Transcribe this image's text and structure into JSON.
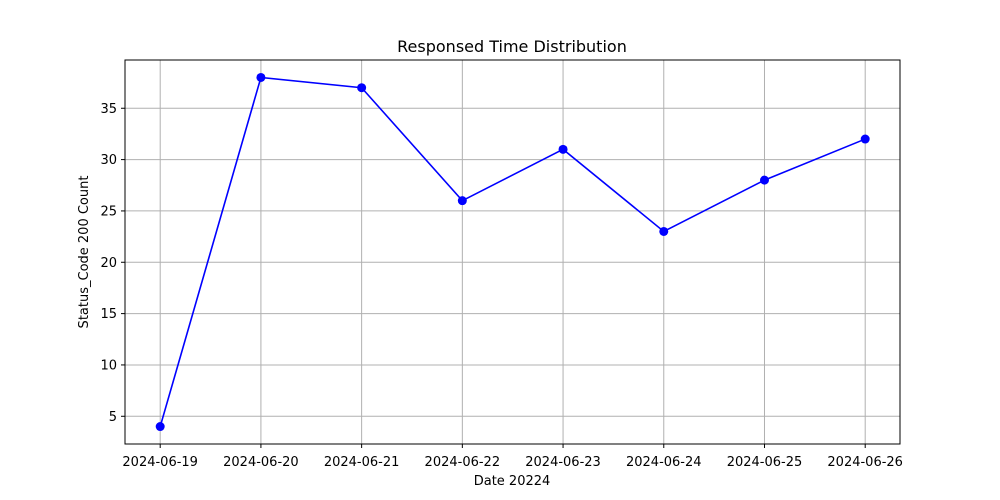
{
  "chart_data": {
    "type": "line",
    "title": "Responsed Time Distribution",
    "xlabel": "Date 20224",
    "ylabel": "Status_Code 200 Count",
    "x": [
      "2024-06-19",
      "2024-06-20",
      "2024-06-21",
      "2024-06-22",
      "2024-06-23",
      "2024-06-24",
      "2024-06-25",
      "2024-06-26"
    ],
    "series": [
      {
        "values": [
          4,
          38,
          37,
          26,
          31,
          23,
          28,
          32
        ],
        "color": "#0000ff",
        "marker": "circle"
      }
    ],
    "yticks": [
      5,
      10,
      15,
      20,
      25,
      30,
      35
    ],
    "ylim": [
      2.3,
      39.7
    ],
    "grid": true,
    "legend": "none"
  }
}
